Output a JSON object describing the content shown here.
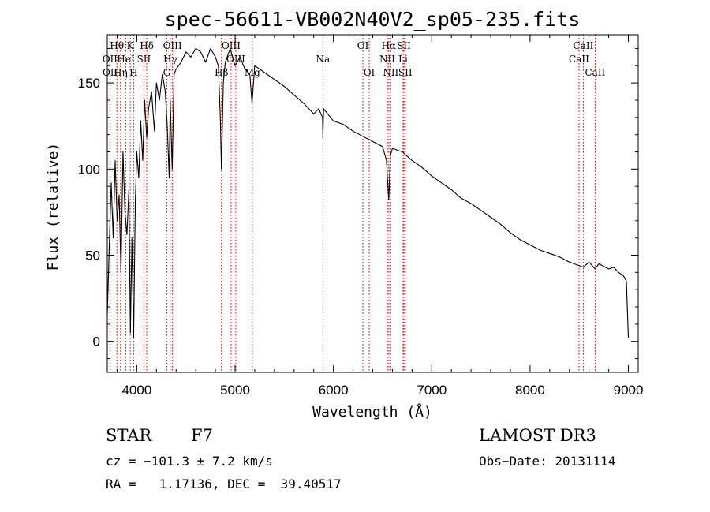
{
  "chart_data": {
    "type": "line",
    "title": "spec-56611-VB002N40V2_sp05-235.fits",
    "xlabel": "Wavelength (Å)",
    "ylabel": "Flux (relative)",
    "xlim": [
      3700,
      9100
    ],
    "ylim": [
      -18,
      178
    ],
    "xticks": [
      "4000",
      "5000",
      "6000",
      "7000",
      "8000",
      "9000"
    ],
    "yticks": [
      "0",
      "50",
      "100",
      "150"
    ],
    "grid": false,
    "series": [
      {
        "name": "flux",
        "x": [
          3700,
          3720,
          3740,
          3760,
          3780,
          3800,
          3820,
          3840,
          3860,
          3880,
          3900,
          3920,
          3935,
          3950,
          3968,
          3985,
          4000,
          4020,
          4040,
          4060,
          4080,
          4101,
          4120,
          4150,
          4180,
          4200,
          4230,
          4260,
          4290,
          4310,
          4330,
          4340,
          4360,
          4380,
          4400,
          4450,
          4500,
          4550,
          4600,
          4650,
          4700,
          4750,
          4800,
          4830,
          4850,
          4861,
          4880,
          4900,
          4950,
          5000,
          5050,
          5100,
          5150,
          5172,
          5200,
          5300,
          5400,
          5500,
          5600,
          5700,
          5800,
          5850,
          5890,
          5893,
          5900,
          6000,
          6100,
          6200,
          6300,
          6400,
          6500,
          6540,
          6563,
          6580,
          6600,
          6700,
          6800,
          6900,
          7000,
          7100,
          7200,
          7300,
          7400,
          7500,
          7600,
          7700,
          7800,
          7900,
          8000,
          8100,
          8200,
          8300,
          8400,
          8498,
          8542,
          8600,
          8662,
          8700,
          8800,
          8850,
          8900,
          8950,
          8980,
          9000
        ],
        "y": [
          15,
          55,
          92,
          60,
          105,
          70,
          85,
          40,
          110,
          75,
          62,
          88,
          5,
          60,
          2,
          80,
          110,
          95,
          128,
          105,
          140,
          118,
          135,
          145,
          122,
          150,
          140,
          155,
          145,
          125,
          95,
          140,
          100,
          155,
          158,
          162,
          168,
          165,
          170,
          168,
          162,
          170,
          165,
          160,
          130,
          100,
          150,
          162,
          170,
          160,
          165,
          158,
          155,
          138,
          160,
          156,
          152,
          148,
          143,
          138,
          132,
          135,
          130,
          118,
          135,
          128,
          126,
          122,
          119,
          116,
          113,
          105,
          82,
          108,
          112,
          110,
          105,
          101,
          96,
          92,
          88,
          83,
          80,
          76,
          72,
          68,
          63,
          59,
          56,
          53,
          51,
          49,
          46,
          44,
          43,
          46,
          42,
          45,
          42,
          43,
          40,
          38,
          35,
          2
        ]
      }
    ],
    "lines": [
      {
        "label": "Hθ",
        "x": 3798,
        "row": 1
      },
      {
        "label": "OII",
        "x": 3727,
        "row": 2
      },
      {
        "label": "OII",
        "x": 3729,
        "row": 3
      },
      {
        "label": "Hη",
        "x": 3835,
        "row": 3
      },
      {
        "label": "HeI",
        "x": 3889,
        "row": 2
      },
      {
        "label": "K",
        "x": 3934,
        "row": 1
      },
      {
        "label": "H",
        "x": 3968,
        "row": 3
      },
      {
        "label": "Hδ",
        "x": 4102,
        "row": 1
      },
      {
        "label": "SII",
        "x": 4072,
        "row": 2
      },
      {
        "label": "OIII",
        "x": 4363,
        "row": 1
      },
      {
        "label": "Hγ",
        "x": 4340,
        "row": 2
      },
      {
        "label": "G",
        "x": 4305,
        "row": 3
      },
      {
        "label": "Hβ",
        "x": 4861,
        "row": 3
      },
      {
        "label": "OIII",
        "x": 4959,
        "row": 1
      },
      {
        "label": "OIII",
        "x": 5007,
        "row": 2
      },
      {
        "label": "Mg",
        "x": 5175,
        "row": 3
      },
      {
        "label": "Na",
        "x": 5893,
        "row": 2
      },
      {
        "label": "OI",
        "x": 6300,
        "row": 1
      },
      {
        "label": "OI",
        "x": 6364,
        "row": 3
      },
      {
        "label": "Hα",
        "x": 6563,
        "row": 1
      },
      {
        "label": "NII",
        "x": 6548,
        "row": 2
      },
      {
        "label": "NII",
        "x": 6583,
        "row": 3
      },
      {
        "label": "SII",
        "x": 6717,
        "row": 1
      },
      {
        "label": "Li",
        "x": 6708,
        "row": 2
      },
      {
        "label": "SII",
        "x": 6731,
        "row": 3
      },
      {
        "label": "CaII",
        "x": 8542,
        "row": 1
      },
      {
        "label": "CaII",
        "x": 8498,
        "row": 2
      },
      {
        "label": "CaII",
        "x": 8662,
        "row": 3
      }
    ]
  },
  "info": {
    "object_class": "STAR",
    "subclass": "F7",
    "survey": "LAMOST DR3",
    "cz": "cz = −101.3 ± 7.2 km/s",
    "obs_date": "Obs−Date: 20131114",
    "coords": "RA =   1.17136, DEC =  39.40517"
  }
}
